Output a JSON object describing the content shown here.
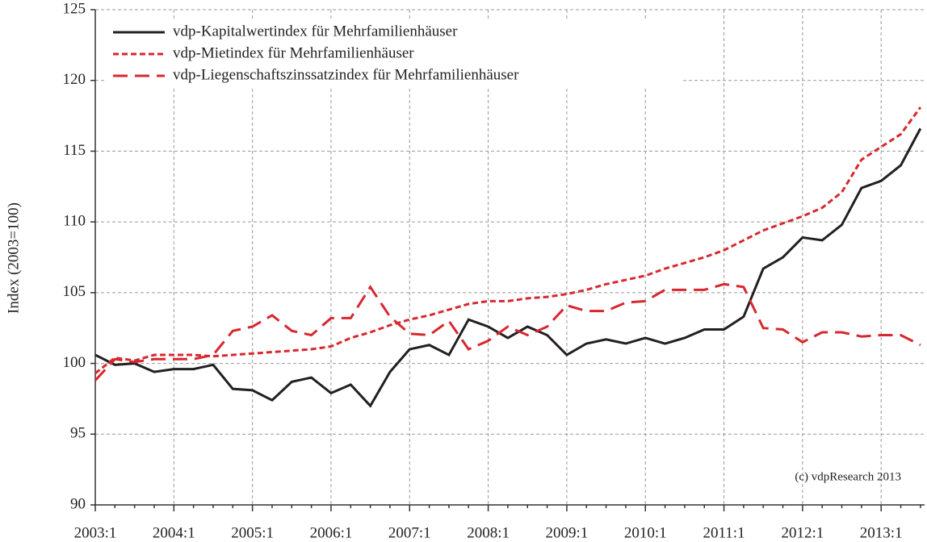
{
  "chart_data": {
    "type": "line",
    "y_label": "Index (2003=100)",
    "annotation": "(c) vdpResearch 2013",
    "categories": [
      "2003:1",
      null,
      null,
      null,
      "2004:1",
      null,
      null,
      null,
      "2005:1",
      null,
      null,
      null,
      "2006:1",
      null,
      null,
      null,
      "2007:1",
      null,
      null,
      null,
      "2008:1",
      null,
      null,
      null,
      "2009:1",
      null,
      null,
      null,
      "2010:1",
      null,
      null,
      null,
      "2011:1",
      null,
      null,
      null,
      "2012:1",
      null,
      null,
      null,
      "2013:1",
      null,
      null
    ],
    "ylim": [
      90,
      125
    ],
    "yticks": [
      90,
      95,
      100,
      105,
      110,
      115,
      120,
      125
    ],
    "grid": true,
    "legend": "top-left",
    "series": [
      {
        "name": "vdp-Kapitalwertindex für Mehrfamilienhäuser",
        "color": "#231f20",
        "style": "solid",
        "values": [
          100.6,
          99.9,
          100.0,
          99.4,
          99.6,
          99.6,
          99.9,
          98.2,
          98.1,
          97.4,
          98.7,
          99.0,
          97.9,
          98.5,
          97.0,
          99.4,
          101.0,
          101.3,
          100.6,
          103.1,
          102.6,
          101.8,
          102.6,
          102.0,
          100.6,
          101.4,
          101.7,
          101.4,
          101.8,
          101.4,
          101.8,
          102.4,
          102.4,
          103.3,
          106.7,
          107.5,
          108.9,
          108.7,
          109.8,
          112.4,
          112.9,
          114.0,
          116.6
        ]
      },
      {
        "name": "vdp-Mietindex für Mehrfamilienhäuser",
        "color": "#d7282f",
        "style": "dotted",
        "values": [
          99.3,
          100.4,
          100.2,
          100.6,
          100.6,
          100.6,
          100.5,
          100.6,
          100.7,
          100.8,
          100.9,
          101.0,
          101.2,
          101.8,
          102.2,
          102.7,
          103.1,
          103.4,
          103.8,
          104.2,
          104.4,
          104.4,
          104.6,
          104.7,
          104.9,
          105.2,
          105.6,
          105.9,
          106.2,
          106.7,
          107.1,
          107.5,
          108.0,
          108.7,
          109.4,
          109.9,
          110.4,
          111.0,
          112.1,
          114.4,
          115.3,
          116.2,
          118.1
        ]
      },
      {
        "name": "vdp-Liegenschaftszinssatzindex für Mehrfamilienhäuser",
        "color": "#d7282f",
        "style": "dashed",
        "values": [
          98.8,
          100.3,
          100.1,
          100.3,
          100.3,
          100.3,
          100.6,
          102.3,
          102.6,
          103.4,
          102.3,
          102.0,
          103.2,
          103.2,
          105.4,
          103.3,
          102.1,
          102.0,
          103.0,
          101.0,
          101.6,
          102.6,
          102.0,
          102.6,
          104.1,
          103.7,
          103.7,
          104.3,
          104.4,
          105.2,
          105.2,
          105.2,
          105.6,
          105.4,
          102.5,
          102.4,
          101.5,
          102.2,
          102.2,
          101.9,
          102.0,
          102.0,
          101.3
        ]
      }
    ]
  }
}
